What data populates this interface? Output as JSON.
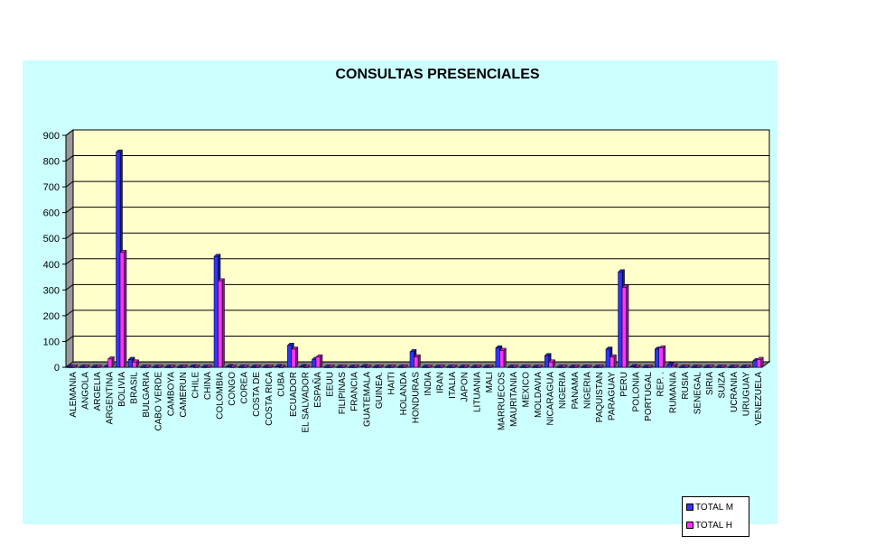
{
  "chart_data": {
    "type": "bar",
    "title": "CONSULTAS PRESENCIALES",
    "xlabel": "",
    "ylabel": "",
    "ylim": [
      0,
      900
    ],
    "yticks": [
      0,
      100,
      200,
      300,
      400,
      500,
      600,
      700,
      800,
      900
    ],
    "grid": true,
    "legend_position": "bottom-right",
    "categories": [
      "ALEMANIA",
      "ANGOLA",
      "ARGELIA",
      "ARGENTINA",
      "BOLIVIA",
      "BRASIL",
      "BULGARIA",
      "CABO VERDE",
      "CAMBOYA",
      "CAMERUN",
      "CHILE",
      "CHINA",
      "COLOMBIA",
      "CONGO",
      "COREA",
      "COSTA DE",
      "COSTA RICA",
      "CUBA",
      "ECUADOR",
      "EL SALVADOR",
      "ESPAÑA",
      "EEUU",
      "FILIPINAS",
      "FRANCIA",
      "GUATEMALA",
      "GUINEA.",
      "HAITI",
      "HOLANDA",
      "HONDURAS",
      "INDIA",
      "IRAN",
      "ITALIA",
      "JAPON",
      "LITUANIA",
      "MALI",
      "MARRUECOS",
      "MAURITANIA",
      "MEXICO",
      "MOLDAVIA",
      "NICARAGUA",
      "NIGERIA",
      "PANAMA",
      "NIGERIA",
      "PAQUISTAN",
      "PARAGUAY",
      "PERU",
      "POLONIA",
      "PORTUGAL",
      "REP. .",
      "RUMANIA",
      "RUSIA",
      "SENEGAL",
      "SIRIA",
      "SUIZA",
      "UCRANIA",
      "URUGUAY",
      "VENEZUELA"
    ],
    "series": [
      {
        "name": "TOTAL M",
        "color": "#3333ff",
        "values": [
          0,
          0,
          0,
          1,
          835,
          30,
          0,
          0,
          0,
          0,
          1,
          0,
          430,
          2,
          0,
          0,
          0,
          2,
          85,
          2,
          30,
          0,
          0,
          0,
          2,
          0,
          0,
          0,
          60,
          0,
          0,
          0,
          0,
          0,
          0,
          75,
          0,
          0,
          0,
          45,
          0,
          0,
          0,
          0,
          70,
          370,
          2,
          0,
          70,
          10,
          0,
          0,
          0,
          0,
          0,
          0,
          25
        ]
      },
      {
        "name": "TOTAL H",
        "color": "#ff33ff",
        "values": [
          0,
          0,
          0,
          32,
          445,
          20,
          0,
          0,
          0,
          0,
          0,
          0,
          335,
          0,
          0,
          0,
          0,
          0,
          70,
          0,
          40,
          0,
          0,
          0,
          0,
          0,
          0,
          0,
          40,
          0,
          0,
          0,
          0,
          0,
          0,
          65,
          0,
          0,
          0,
          20,
          0,
          0,
          0,
          0,
          40,
          310,
          0,
          0,
          75,
          5,
          0,
          0,
          0,
          0,
          0,
          0,
          30
        ]
      }
    ]
  },
  "colors": {
    "chart_background": "#ccffff",
    "plot_background": "#ffffcc",
    "wall_side": "#999999",
    "floor": "#808080"
  }
}
